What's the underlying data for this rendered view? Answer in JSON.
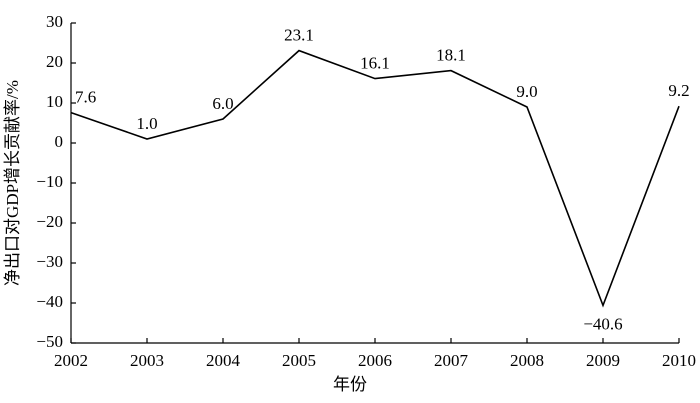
{
  "chart_data": {
    "type": "line",
    "x": [
      2002,
      2003,
      2004,
      2005,
      2006,
      2007,
      2008,
      2009,
      2010
    ],
    "values": [
      7.6,
      1.0,
      6.0,
      23.1,
      16.1,
      18.1,
      9.0,
      -40.6,
      9.2
    ],
    "value_labels": [
      "7.6",
      "1.0",
      "6.0",
      "23.1",
      "16.1",
      "18.1",
      "9.0",
      "−40.6",
      "9.2"
    ],
    "color": "#000000",
    "xlim": [
      2002,
      2010
    ],
    "xticks": [
      2002,
      2003,
      2004,
      2005,
      2006,
      2007,
      2008,
      2009,
      2010
    ],
    "ylim": [
      -50,
      30
    ],
    "yticks": [
      {
        "value": -50,
        "label": "−50"
      },
      {
        "value": -40,
        "label": "−40"
      },
      {
        "value": -30,
        "label": "−30"
      },
      {
        "value": -20,
        "label": "−20"
      },
      {
        "value": -10,
        "label": "−10"
      },
      0,
      10,
      20,
      30
    ],
    "xlabel": "年份",
    "ylabel": "净出口对GDP增长贡献率/%",
    "grid": false
  }
}
